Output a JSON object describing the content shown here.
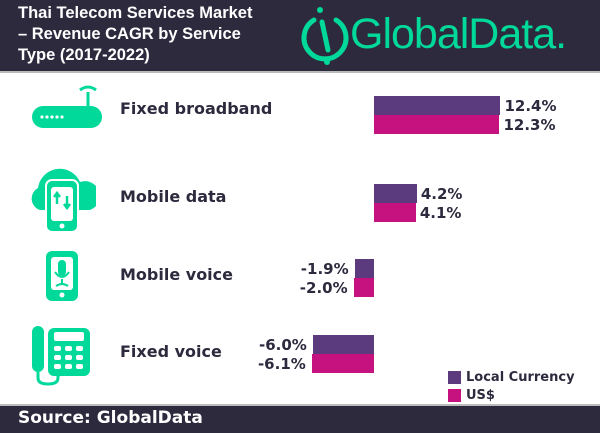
{
  "header": {
    "title": "Thai Telecom Services Market – Revenue CAGR by Service Type (2017-2022)",
    "logo": "GlobalData."
  },
  "chart_data": {
    "type": "bar",
    "orientation": "horizontal",
    "title": "Thai Telecom Services Market – Revenue CAGR by Service Type (2017-2022)",
    "categories": [
      "Fixed broadband",
      "Mobile data",
      "Mobile voice",
      "Fixed voice"
    ],
    "series": [
      {
        "name": "Local Currency",
        "color": "#5b3a7d",
        "values": [
          12.4,
          4.2,
          -1.9,
          -6.0
        ],
        "labels": [
          "12.4%",
          "4.2%",
          "-1.9%",
          "-6.0%"
        ]
      },
      {
        "name": "US$",
        "color": "#c5127f",
        "values": [
          12.3,
          4.1,
          -2.0,
          -6.1
        ],
        "labels": [
          "12.3%",
          "4.1%",
          "-2.0%",
          "-6.1%"
        ]
      }
    ],
    "legend": "bottom-right",
    "grid": false
  },
  "footer": {
    "source": "Source: GlobalData"
  },
  "colors": {
    "accent": "#00d99a",
    "dark": "#2d2a3e"
  }
}
